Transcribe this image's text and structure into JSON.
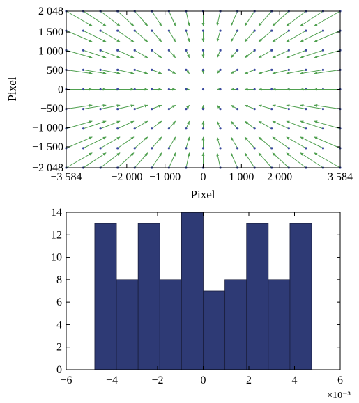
{
  "chart_data": [
    {
      "type": "quiver",
      "xlabel": "Pixel",
      "ylabel": "Pixel",
      "xlim": [
        -3584,
        3584
      ],
      "ylim": [
        -2048,
        2048
      ],
      "grid": false,
      "xticks": [
        -3584,
        -2000,
        -1000,
        0,
        1000,
        2000,
        3584
      ],
      "xtick_labels": [
        "−3 584",
        "−2 000",
        "−1 000",
        "0",
        "1 000",
        "2 000",
        "3 584"
      ],
      "yticks": [
        2048,
        1500,
        1000,
        500,
        0,
        -500,
        -1000,
        -1500,
        -2048
      ],
      "ytick_labels": [
        "2 048",
        "1 500",
        "1 000",
        "500",
        "0",
        "−500",
        "−1 000",
        "−1 500",
        "−2 048"
      ],
      "grid_points_x": [
        -3584,
        -3136,
        -2688,
        -2240,
        -1792,
        -1344,
        -896,
        -448,
        0,
        448,
        896,
        1344,
        1792,
        2240,
        2688,
        3136,
        3584
      ],
      "grid_points_y": [
        2048,
        1536,
        1024,
        512,
        0,
        -512,
        -1024,
        -1536,
        -2048
      ],
      "vector_field": "radial, pointing toward the image center, length proportional to distance from center",
      "point_color": "#3b4a9e",
      "arrow_color": "#4fa04f"
    },
    {
      "type": "histogram",
      "xlabel": "",
      "ylabel": "",
      "xlim": [
        -6,
        6
      ],
      "ylim": [
        0,
        14
      ],
      "grid": false,
      "x_multiplier_label": "×10⁻³",
      "xticks": [
        -6,
        -4,
        -2,
        0,
        2,
        4,
        6
      ],
      "xtick_labels": [
        "−6",
        "−4",
        "−2",
        "0",
        "2",
        "4",
        "6"
      ],
      "yticks": [
        0,
        2,
        4,
        6,
        8,
        10,
        12,
        14
      ],
      "ytick_labels": [
        "0",
        "2",
        "4",
        "6",
        "8",
        "10",
        "12",
        "14"
      ],
      "bin_edges": [
        -4.75,
        -3.8,
        -2.85,
        -1.9,
        -0.95,
        0.0,
        0.95,
        1.9,
        2.85,
        3.8,
        4.75
      ],
      "values": [
        13,
        8,
        13,
        8,
        14,
        7,
        8,
        13,
        8,
        13
      ],
      "bar_color": "#2e3a75"
    }
  ]
}
